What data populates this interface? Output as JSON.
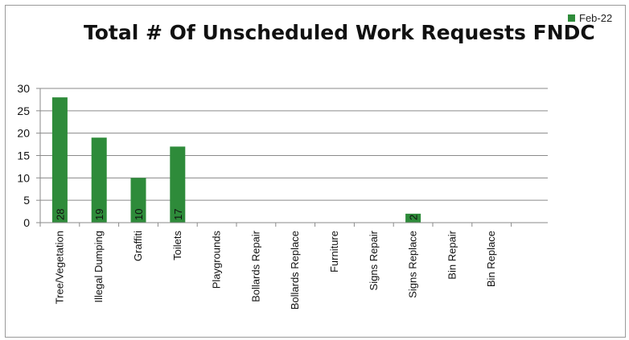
{
  "chart_data": {
    "type": "bar",
    "title": "Total # Of Unscheduled Work Requests FNDC",
    "xlabel": "",
    "ylabel": "",
    "ylim": [
      0,
      30
    ],
    "yticks": [
      0,
      5,
      10,
      15,
      20,
      25,
      30
    ],
    "grid": true,
    "legend_position": "top-right",
    "categories": [
      "Tree/Vegetation",
      "Illegal Dumping",
      "Graffiti",
      "Toilets",
      "Playgrounds",
      "Bollards Repair",
      "Bollards Replace",
      "Furniture",
      "Signs Repair",
      "Signs Replace",
      "Bin Repair",
      "Bin Replace"
    ],
    "series": [
      {
        "name": "Feb-22",
        "color": "#2e8b3a",
        "values": [
          28,
          19,
          10,
          17,
          0,
          0,
          0,
          0,
          0,
          2,
          0,
          0
        ],
        "data_labels": [
          "28",
          "19",
          "10",
          "17",
          "",
          "",
          "",
          "",
          "",
          "2",
          "",
          ""
        ]
      }
    ]
  }
}
